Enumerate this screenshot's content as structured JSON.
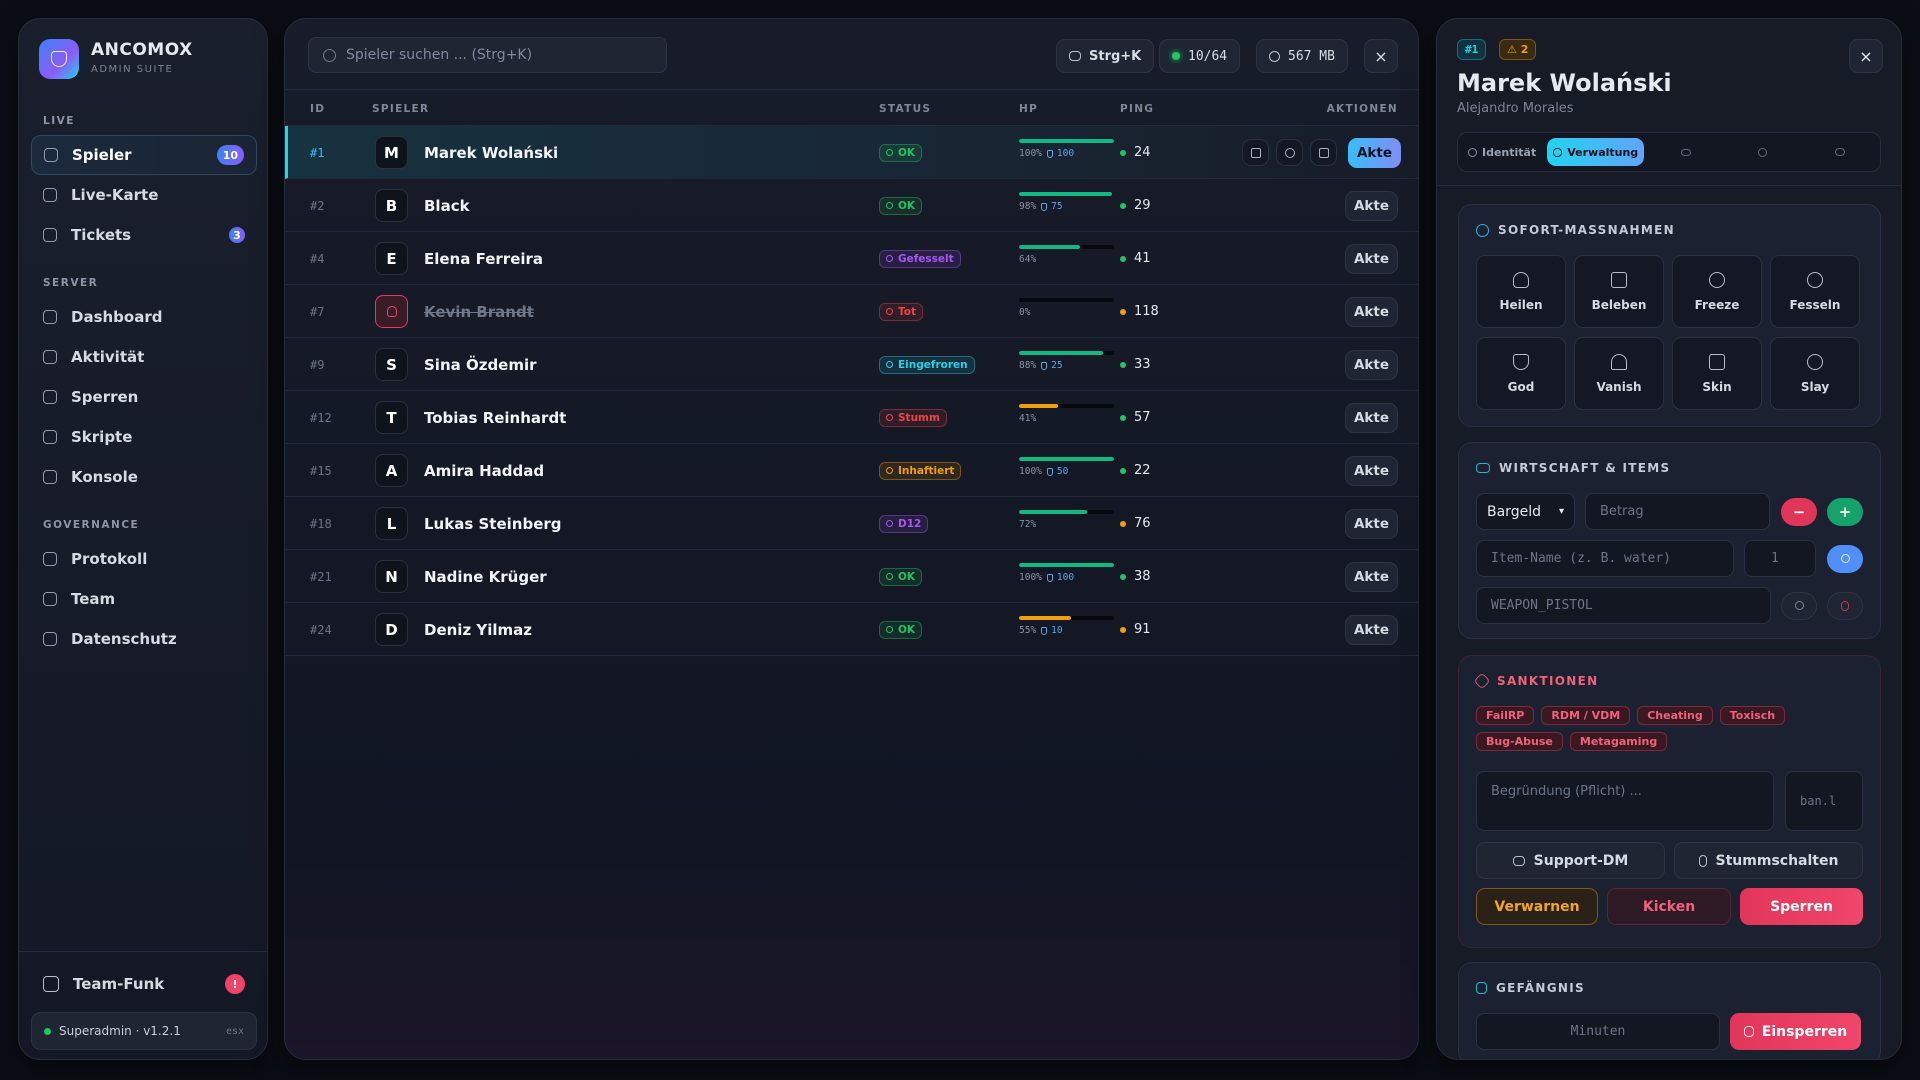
{
  "sidebar": {
    "brand": "ANCOMOX",
    "subtitle": "ADMIN SUITE",
    "sections": [
      {
        "title": "LIVE",
        "items": [
          {
            "label": "Spieler",
            "badge": "10"
          },
          {
            "label": "Live-Karte"
          },
          {
            "label": "Tickets",
            "badge": "3"
          }
        ]
      },
      {
        "title": "SERVER",
        "items": [
          {
            "label": "Dashboard"
          },
          {
            "label": "Aktivität"
          },
          {
            "label": "Sperren"
          },
          {
            "label": "Skripte"
          },
          {
            "label": "Konsole"
          }
        ]
      },
      {
        "title": "GOVERNANCE",
        "items": [
          {
            "label": "Protokoll"
          },
          {
            "label": "Team"
          },
          {
            "label": "Datenschutz"
          }
        ]
      }
    ],
    "team_funk": "Team-Funk",
    "team_funk_badge": "!",
    "footer": "Superadmin · v1.2.1",
    "footer_tag": "esx"
  },
  "topbar": {
    "search": "Spieler suchen ... (Strg+K)",
    "shortcut": "Strg+K",
    "players": "10/64",
    "memory": "567 MB",
    "close": "×"
  },
  "table": {
    "columns": [
      "ID",
      "SPIELER",
      "STATUS",
      "HP",
      "PING",
      "AKTIONEN"
    ],
    "action": "Akte",
    "rows": [
      {
        "id": "#1",
        "initial": "M",
        "name": "Marek Wolański",
        "status": "OK",
        "status_color": "#22c55e",
        "hp": 100,
        "hp_label": "100%",
        "hp_color": "#10b981",
        "armor": "100",
        "ping": "24",
        "ping_color": "#22c55e"
      },
      {
        "id": "#2",
        "initial": "B",
        "name": "Black",
        "status": "OK",
        "status_color": "#22c55e",
        "hp": 98,
        "hp_label": "98%",
        "hp_color": "#10b981",
        "armor": "75",
        "ping": "29",
        "ping_color": "#22c55e"
      },
      {
        "id": "#4",
        "initial": "E",
        "name": "Elena Ferreira",
        "status": "Gefesselt",
        "status_color": "#a855f7",
        "hp": 64,
        "hp_label": "64%",
        "hp_color": "#10b981",
        "ping": "41",
        "ping_color": "#22c55e"
      },
      {
        "id": "#7",
        "name": "Kevin Brandt",
        "status": "Tot",
        "status_color": "#ef4444",
        "hp": 0,
        "hp_label": "0%",
        "hp_color": "#ef4444",
        "ping": "118",
        "ping_color": "#f59e0b"
      },
      {
        "id": "#9",
        "initial": "S",
        "name": "Sina Özdemir",
        "status": "Eingefroren",
        "status_color": "#22d3ee",
        "hp": 88,
        "hp_label": "88%",
        "hp_color": "#10b981",
        "armor": "25",
        "ping": "33",
        "ping_color": "#22c55e"
      },
      {
        "id": "#12",
        "initial": "T",
        "name": "Tobias Reinhardt",
        "status": "Stumm",
        "status_color": "#ef4444",
        "hp": 41,
        "hp_label": "41%",
        "hp_color": "#f59e0b",
        "ping": "57",
        "ping_color": "#22c55e"
      },
      {
        "id": "#15",
        "initial": "A",
        "name": "Amira Haddad",
        "status": "Inhaftiert",
        "status_color": "#f59e0b",
        "hp": 100,
        "hp_label": "100%",
        "hp_color": "#10b981",
        "armor": "50",
        "ping": "22",
        "ping_color": "#22c55e"
      },
      {
        "id": "#18",
        "initial": "L",
        "name": "Lukas Steinberg",
        "status": "D12",
        "status_color": "#a855f7",
        "hp": 72,
        "hp_label": "72%",
        "hp_color": "#10b981",
        "ping": "76",
        "ping_color": "#f59e0b"
      },
      {
        "id": "#21",
        "initial": "N",
        "name": "Nadine Krüger",
        "status": "OK",
        "status_color": "#22c55e",
        "hp": 100,
        "hp_label": "100%",
        "hp_color": "#10b981",
        "armor": "100",
        "ping": "38",
        "ping_color": "#22c55e"
      },
      {
        "id": "#24",
        "initial": "D",
        "name": "Deniz Yilmaz",
        "status": "OK",
        "status_color": "#22c55e",
        "hp": 55,
        "hp_label": "55%",
        "hp_color": "#f59e0b",
        "armor": "10",
        "ping": "91",
        "ping_color": "#f59e0b"
      }
    ]
  },
  "detail": {
    "id_badge": "#1",
    "warn_badge": "⚠ 2",
    "close": "×",
    "name": "Marek Wolański",
    "alias": "Alejandro Morales",
    "tabs": [
      "Identität",
      "Verwaltung"
    ],
    "quick": {
      "title": "SOFORT-MASSNAHMEN",
      "actions": [
        "Heilen",
        "Beleben",
        "Freeze",
        "Fesseln",
        "God",
        "Vanish",
        "Skin",
        "Slay"
      ]
    },
    "economy": {
      "title": "WIRTSCHAFT & ITEMS",
      "account": "Bargeld",
      "amount": "Betrag",
      "minus": "−",
      "plus": "+",
      "item": "Item-Name (z. B. water)",
      "quantity": "1",
      "weapon": "WEAPON_PISTOL"
    },
    "sanctions": {
      "title": "SANKTIONEN",
      "tags": [
        "FailRP",
        "RDM / VDM",
        "Cheating",
        "Toxisch",
        "Bug-Abuse",
        "Metagaming"
      ],
      "reason": "Begründung (Pflicht) ...",
      "duration": "ban.l",
      "support": "Support-DM",
      "mute": "Stummschalten",
      "warn": "Verwarnen",
      "kick": "Kicken",
      "ban": "Sperren"
    },
    "jail": {
      "title": "GEFÄNGNIS",
      "minutes": "Minuten",
      "button": "Einsperren"
    }
  }
}
